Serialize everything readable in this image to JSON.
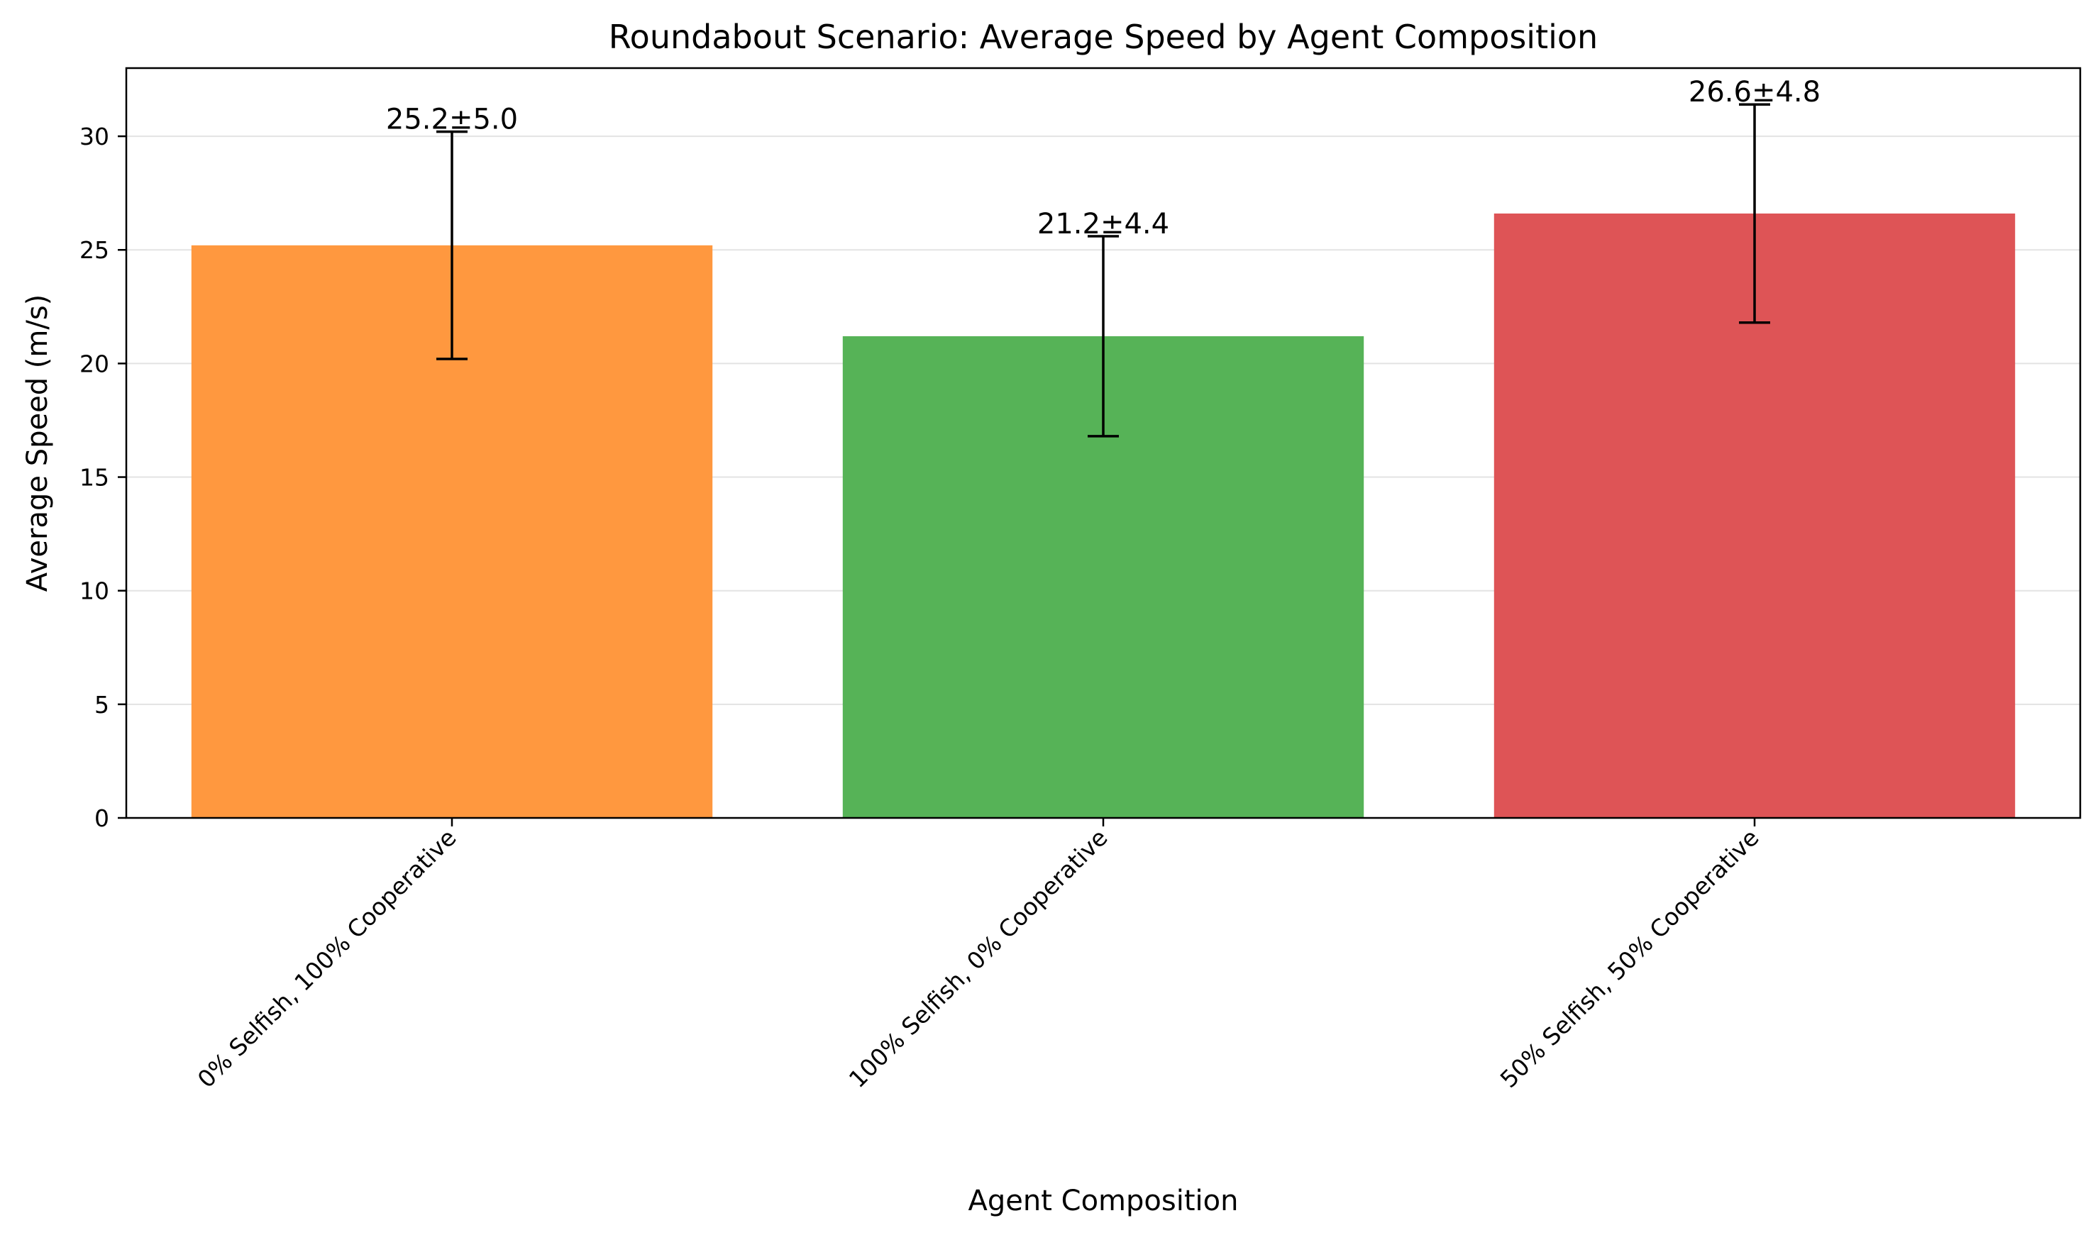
{
  "chart_data": {
    "type": "bar",
    "title": "Roundabout Scenario: Average Speed by Agent Composition",
    "xlabel": "Agent Composition",
    "ylabel": "Average Speed (m/s)",
    "categories": [
      "0% Selfish, 100% Cooperative",
      "100% Selfish, 0% Cooperative",
      "50% Selfish, 50% Cooperative"
    ],
    "values": [
      25.2,
      21.2,
      26.6
    ],
    "errors": [
      5.0,
      4.4,
      4.8
    ],
    "bar_labels": [
      "25.2±5.0",
      "21.2±4.4",
      "26.6±4.8"
    ],
    "colors": [
      "#ff983f",
      "#56b357",
      "#de5456"
    ],
    "ylim": [
      0,
      33
    ],
    "yticks": [
      0,
      5,
      10,
      15,
      20,
      25,
      30
    ],
    "grid": "horizontal",
    "legend": "none"
  }
}
